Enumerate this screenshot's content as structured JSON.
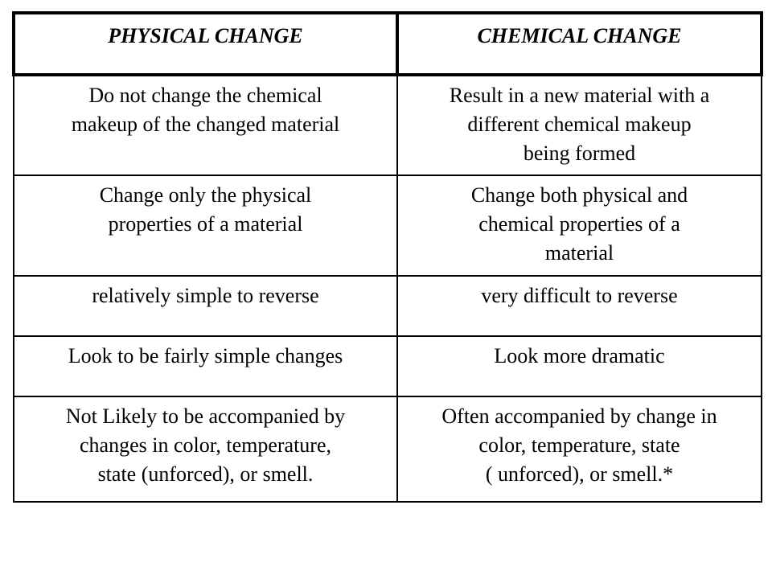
{
  "table": {
    "headers": [
      "PHYSICAL CHANGE",
      "CHEMICAL CHANGE"
    ],
    "rows": [
      [
        "Do not change the chemical\nmakeup of the changed material",
        "Result in a new material with a\ndifferent chemical makeup\nbeing formed"
      ],
      [
        "Change only the physical\nproperties of a material",
        "Change both physical and\nchemical properties of a\nmaterial"
      ],
      [
        "relatively simple to reverse",
        "very difficult to reverse"
      ],
      [
        "Look to be fairly simple changes",
        "Look more dramatic"
      ],
      [
        "Not Likely to be accompanied by\nchanges in color, temperature,\nstate (unforced), or smell.",
        "Often accompanied by change in\ncolor, temperature, state\n( unforced), or smell.*"
      ]
    ]
  }
}
